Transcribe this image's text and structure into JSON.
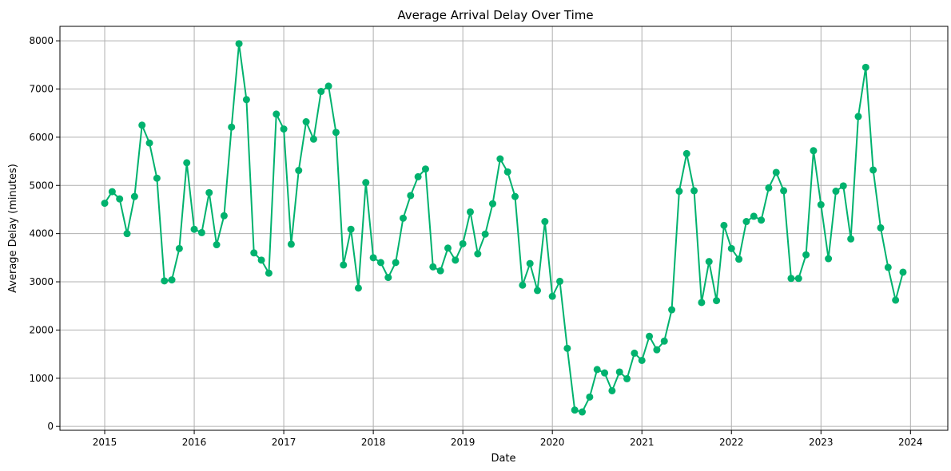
{
  "chart_data": {
    "type": "line",
    "title": "Average Arrival Delay Over Time",
    "xlabel": "Date",
    "ylabel": "Average Delay (minutes)",
    "xlim": [
      "2014-07-01",
      "2024-06-01"
    ],
    "ylim": [
      -80,
      8300
    ],
    "x_ticks": [
      "2015",
      "2016",
      "2017",
      "2018",
      "2019",
      "2020",
      "2021",
      "2022",
      "2023",
      "2024"
    ],
    "y_ticks": [
      0,
      1000,
      2000,
      3000,
      4000,
      5000,
      6000,
      7000,
      8000
    ],
    "grid": true,
    "legend": "none",
    "color": "#00b26e",
    "marker": "circle",
    "series": [
      {
        "x": [
          "2015-01",
          "2015-02",
          "2015-03",
          "2015-04",
          "2015-05",
          "2015-06",
          "2015-07",
          "2015-08",
          "2015-09",
          "2015-10",
          "2015-11",
          "2015-12",
          "2016-01",
          "2016-02",
          "2016-03",
          "2016-04",
          "2016-05",
          "2016-06",
          "2016-07",
          "2016-08",
          "2016-09",
          "2016-10",
          "2016-11",
          "2016-12",
          "2017-01",
          "2017-02",
          "2017-03",
          "2017-04",
          "2017-05",
          "2017-06",
          "2017-07",
          "2017-08",
          "2017-09",
          "2017-10",
          "2017-11",
          "2017-12",
          "2018-01",
          "2018-02",
          "2018-03",
          "2018-04",
          "2018-05",
          "2018-06",
          "2018-07",
          "2018-08",
          "2018-09",
          "2018-10",
          "2018-11",
          "2018-12",
          "2019-01",
          "2019-02",
          "2019-03",
          "2019-04",
          "2019-05",
          "2019-06",
          "2019-07",
          "2019-08",
          "2019-09",
          "2019-10",
          "2019-11",
          "2019-12",
          "2020-01",
          "2020-02",
          "2020-03",
          "2020-04",
          "2020-05",
          "2020-06",
          "2020-07",
          "2020-08",
          "2020-09",
          "2020-10",
          "2020-11",
          "2020-12",
          "2021-01",
          "2021-02",
          "2021-03",
          "2021-04",
          "2021-05",
          "2021-06",
          "2021-07",
          "2021-08",
          "2021-09",
          "2021-10",
          "2021-11",
          "2021-12",
          "2022-01",
          "2022-02",
          "2022-03",
          "2022-04",
          "2022-05",
          "2022-06",
          "2022-07",
          "2022-08",
          "2022-09",
          "2022-10",
          "2022-11",
          "2022-12",
          "2023-01",
          "2023-02",
          "2023-03",
          "2023-04",
          "2023-05",
          "2023-06",
          "2023-07",
          "2023-08",
          "2023-09",
          "2023-10",
          "2023-11",
          "2023-12"
        ],
        "y": [
          4630,
          4870,
          4720,
          4000,
          4770,
          6250,
          5880,
          5150,
          3020,
          3040,
          3690,
          5470,
          4090,
          4020,
          4850,
          3770,
          4370,
          6210,
          7940,
          6780,
          3600,
          3450,
          3180,
          6480,
          6170,
          3780,
          5310,
          6320,
          5960,
          6950,
          7060,
          6100,
          3350,
          4090,
          2870,
          5060,
          3500,
          3400,
          3090,
          3400,
          4320,
          4790,
          5180,
          5340,
          3310,
          3230,
          3700,
          3450,
          3790,
          4450,
          3580,
          3990,
          4620,
          5550,
          5280,
          4770,
          2930,
          3380,
          2820,
          4250,
          2700,
          3010,
          1620,
          340,
          300,
          610,
          1180,
          1110,
          740,
          1130,
          990,
          1520,
          1370,
          1870,
          1590,
          1770,
          2420,
          4880,
          5660,
          4890,
          2570,
          3420,
          2610,
          4170,
          3690,
          3470,
          4250,
          4360,
          4280,
          4950,
          5270,
          4890,
          3070,
          3070,
          3560,
          5720,
          4600,
          3480,
          4880,
          4990,
          3890,
          6430,
          7450,
          5320,
          4120,
          3300,
          2620,
          3200
        ]
      }
    ]
  }
}
